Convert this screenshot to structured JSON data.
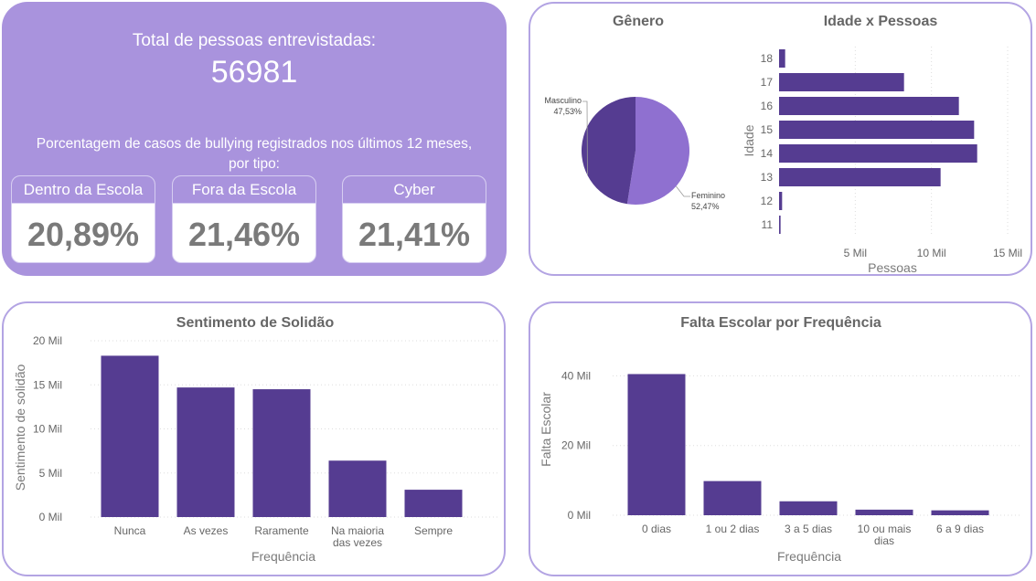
{
  "kpi": {
    "total_label": "Total de pessoas entrevistadas:",
    "total_value": "56981",
    "bullying_label_line1": "Porcentagem de casos de bullying registrados nos últimos 12 meses,",
    "bullying_label_line2": "por tipo:",
    "cards": [
      {
        "label": "Dentro da Escola",
        "value": "20,89%"
      },
      {
        "label": "Fora da Escola",
        "value": "21,46%"
      },
      {
        "label": "Cyber",
        "value": "21,41%"
      }
    ]
  },
  "colors": {
    "panel_purple": "#a993dd",
    "bar": "#553c91",
    "pie_dark": "#553c91",
    "pie_light": "#8f70d0",
    "border": "#b3a4e3"
  },
  "chart_data": [
    {
      "type": "pie",
      "title": "Gênero",
      "slices": [
        {
          "name": "Masculino",
          "value": 47.53,
          "label": "47,53%"
        },
        {
          "name": "Feminino",
          "value": 52.47,
          "label": "52,47%"
        }
      ]
    },
    {
      "type": "bar",
      "orientation": "horizontal",
      "title": "Idade x Pessoas",
      "xlabel": "Pessoas",
      "ylabel": "Idade",
      "categories": [
        "18",
        "17",
        "16",
        "15",
        "14",
        "13",
        "12",
        "11"
      ],
      "values": [
        400,
        8200,
        11800,
        12800,
        13000,
        10600,
        200,
        100
      ],
      "xlim": [
        0,
        15000
      ],
      "x_ticks": [
        {
          "value": 5000,
          "label": "5 Mil"
        },
        {
          "value": 10000,
          "label": "10 Mil"
        },
        {
          "value": 15000,
          "label": "15 Mil"
        }
      ],
      "grid": true
    },
    {
      "type": "bar",
      "title": "Sentimento de Solidão",
      "xlabel": "Frequência",
      "ylabel": "Sentimento de solidão",
      "categories": [
        "Nunca",
        "As vezes",
        "Raramente",
        "Na maioria das vezes",
        "Sempre"
      ],
      "category_lines": [
        [
          "Nunca"
        ],
        [
          "As vezes"
        ],
        [
          "Raramente"
        ],
        [
          "Na maioria",
          "das vezes"
        ],
        [
          "Sempre"
        ]
      ],
      "values": [
        18300,
        14700,
        14500,
        6400,
        3100
      ],
      "ylim": [
        0,
        20000
      ],
      "y_ticks": [
        {
          "value": 0,
          "label": "0 Mil"
        },
        {
          "value": 5000,
          "label": "5 Mil"
        },
        {
          "value": 10000,
          "label": "10 Mil"
        },
        {
          "value": 15000,
          "label": "15 Mil"
        },
        {
          "value": 20000,
          "label": "20 Mil"
        }
      ],
      "grid": true
    },
    {
      "type": "bar",
      "title": "Falta Escolar por Frequência",
      "xlabel": "Frequência",
      "ylabel": "Falta Escolar",
      "categories": [
        "0 dias",
        "1 ou 2 dias",
        "3 a 5 dias",
        "10 ou mais dias",
        "6 a 9 dias"
      ],
      "category_lines": [
        [
          "0 dias"
        ],
        [
          "1 ou 2 dias"
        ],
        [
          "3 a 5 dias"
        ],
        [
          "10 ou mais",
          "dias"
        ],
        [
          "6 a 9 dias"
        ]
      ],
      "values": [
        40500,
        9800,
        4000,
        1600,
        1400
      ],
      "ylim": [
        0,
        46000
      ],
      "y_ticks": [
        {
          "value": 0,
          "label": "0 Mil"
        },
        {
          "value": 20000,
          "label": "20 Mil"
        },
        {
          "value": 40000,
          "label": "40 Mil"
        }
      ],
      "grid": true
    }
  ]
}
